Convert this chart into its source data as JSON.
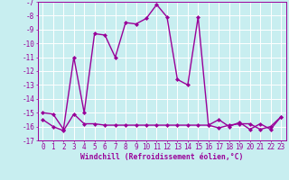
{
  "xlabel": "Windchill (Refroidissement éolien,°C)",
  "hours": [
    0,
    1,
    2,
    3,
    4,
    5,
    6,
    7,
    8,
    9,
    10,
    11,
    12,
    13,
    14,
    15,
    16,
    17,
    18,
    19,
    20,
    21,
    22,
    23
  ],
  "line1": [
    -15.0,
    -15.1,
    -16.2,
    -11.0,
    -15.0,
    -9.3,
    -9.4,
    -11.0,
    -8.5,
    -8.6,
    -8.2,
    -7.2,
    -8.1,
    -12.6,
    -13.0,
    -8.1,
    -15.9,
    -15.5,
    -16.0,
    -15.7,
    -16.2,
    -15.8,
    -16.2,
    -15.3
  ],
  "line2": [
    -15.5,
    -16.0,
    -16.3,
    -15.1,
    -15.8,
    -15.8,
    -15.9,
    -15.9,
    -15.9,
    -15.9,
    -15.9,
    -15.9,
    -15.9,
    -15.9,
    -15.9,
    -15.9,
    -15.9,
    -16.1,
    -15.9,
    -15.8,
    -15.8,
    -16.2,
    -16.0,
    -15.3
  ],
  "ylim": [
    -17,
    -7
  ],
  "yticks": [
    -7,
    -8,
    -9,
    -10,
    -11,
    -12,
    -13,
    -14,
    -15,
    -16,
    -17
  ],
  "xlim": [
    -0.5,
    23.5
  ],
  "bg_color": "#c8eef0",
  "line_color": "#990099",
  "grid_color": "#ffffff",
  "marker": "D",
  "marker_size": 2,
  "linewidth": 1.0,
  "tick_fontsize": 5.5,
  "xlabel_fontsize": 5.8
}
